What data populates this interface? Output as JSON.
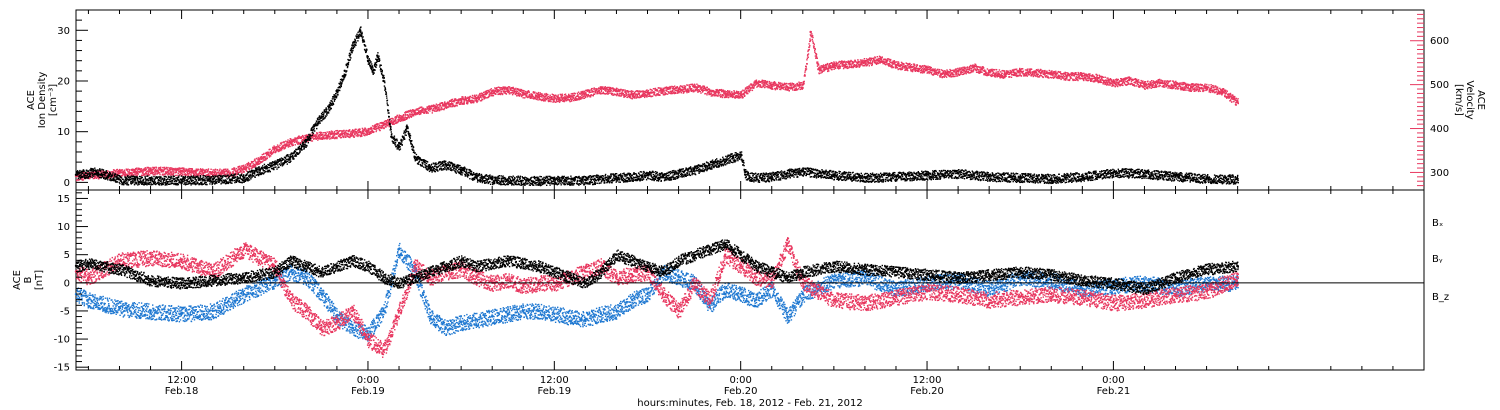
{
  "colors": {
    "black": "#000000",
    "pink": "#e8375f",
    "blue": "#1f78d1",
    "background": "#ffffff"
  },
  "chart_data": [
    {
      "type": "scatter",
      "panel": "top",
      "title": "",
      "x_unit": "hours since 2012-02-18 00:00",
      "xlim": [
        5.2,
        92.0
      ],
      "x_ticks": [
        {
          "hour": 12,
          "time": "12:00",
          "date": "Feb.18"
        },
        {
          "hour": 24,
          "time": "0:00",
          "date": "Feb.19"
        },
        {
          "hour": 36,
          "time": "12:00",
          "date": "Feb.19"
        },
        {
          "hour": 48,
          "time": "0:00",
          "date": "Feb.20"
        },
        {
          "hour": 60,
          "time": "12:00",
          "date": "Feb.20"
        },
        {
          "hour": 72,
          "time": "0:00",
          "date": "Feb.21"
        }
      ],
      "left_axis": {
        "label_lines": [
          "ACE",
          "Ion Density",
          "[cm⁻³]"
        ],
        "ylim": [
          -1.5,
          34
        ],
        "ticks": [
          0,
          10,
          20,
          30
        ]
      },
      "right_axis": {
        "label_lines": [
          "ACE",
          "Velocity",
          "[km/s]"
        ],
        "ylim": [
          260,
          670
        ],
        "ticks": [
          300,
          400,
          500,
          600
        ],
        "color": "#e8375f"
      },
      "series": [
        {
          "axis": "left",
          "color": "#000000",
          "x": [
            5.2,
            6.5,
            8,
            9,
            10,
            12,
            14,
            16,
            17,
            18,
            19,
            20,
            20.5,
            21,
            21.5,
            22,
            22.5,
            23,
            23.5,
            24,
            24.3,
            24.6,
            25,
            25.5,
            26,
            26.5,
            27,
            28,
            29,
            30,
            31,
            32,
            33,
            35,
            38,
            40,
            42,
            43,
            44,
            45,
            46,
            47,
            47.5,
            48,
            48.3,
            49,
            50,
            51,
            52,
            54,
            56,
            58,
            60,
            62,
            64,
            66,
            68,
            70,
            72,
            74,
            76,
            78,
            80
          ],
          "y": [
            1.5,
            2.2,
            0.6,
            0.5,
            0.5,
            0.5,
            0.6,
            1.0,
            2.5,
            3.5,
            5.0,
            8.0,
            11.0,
            13.0,
            15.0,
            18.0,
            22.0,
            27.0,
            30.0,
            24.0,
            22.0,
            25.0,
            20.0,
            9.0,
            7.0,
            11.0,
            5.0,
            3.0,
            3.5,
            2.5,
            1.0,
            0.6,
            0.5,
            0.4,
            0.5,
            1.0,
            1.5,
            1.2,
            1.8,
            2.5,
            3.5,
            4.5,
            5.0,
            5.5,
            1.5,
            1.0,
            1.2,
            1.8,
            2.2,
            1.5,
            1.0,
            1.2,
            1.5,
            1.8,
            1.2,
            1.0,
            0.8,
            1.2,
            2.0,
            1.8,
            1.2,
            0.8,
            0.7
          ]
        },
        {
          "axis": "right",
          "color": "#e8375f",
          "x": [
            5.2,
            8,
            10,
            12,
            14,
            15,
            16,
            17,
            18,
            19,
            20,
            21,
            22,
            23,
            24,
            25,
            26,
            27,
            28,
            29,
            30,
            31,
            32,
            33,
            34,
            35,
            36,
            37,
            38,
            39,
            40,
            41,
            42,
            43,
            44,
            45,
            46,
            47,
            48,
            49,
            50,
            51,
            52,
            52.5,
            53,
            54,
            55,
            56,
            57,
            58,
            59,
            60,
            61,
            62,
            63,
            64,
            65,
            66,
            67,
            68,
            69,
            70,
            71,
            72,
            73,
            74,
            75,
            76,
            77,
            78,
            79,
            80
          ],
          "y": [
            292,
            300,
            305,
            303,
            300,
            300,
            310,
            330,
            355,
            370,
            380,
            385,
            388,
            390,
            395,
            410,
            425,
            440,
            445,
            455,
            465,
            470,
            485,
            490,
            480,
            475,
            470,
            472,
            480,
            490,
            485,
            478,
            482,
            487,
            490,
            495,
            485,
            480,
            478,
            505,
            500,
            495,
            500,
            620,
            535,
            545,
            548,
            552,
            558,
            545,
            540,
            535,
            525,
            530,
            540,
            528,
            525,
            530,
            528,
            525,
            520,
            520,
            515,
            505,
            510,
            500,
            505,
            500,
            495,
            495,
            485,
            460
          ]
        }
      ]
    },
    {
      "type": "scatter",
      "panel": "bottom",
      "title": "",
      "x_unit": "hours since 2012-02-18 00:00",
      "xlim": [
        5.2,
        92.0
      ],
      "xlabel": "hours:minutes, Feb. 18, 2012 - Feb. 21, 2012",
      "left_axis": {
        "label_lines": [
          "ACE",
          "B",
          "[nT]"
        ],
        "ylim": [
          -15.5,
          16.5
        ],
        "ticks": [
          -15,
          -10,
          -5,
          0,
          5,
          10,
          15
        ]
      },
      "zero_line": true,
      "legend": [
        "Bₓ",
        "Bᵧ",
        "B_z"
      ],
      "series": [
        {
          "name": "Bₓ",
          "color": "#000000",
          "x": [
            5.2,
            6,
            8,
            10,
            12,
            14,
            16,
            18,
            19,
            20,
            21,
            22,
            23,
            24,
            25,
            26,
            27,
            28,
            29,
            30,
            31,
            32,
            33,
            34,
            35,
            36,
            37,
            38,
            39,
            40,
            41,
            42,
            43,
            44,
            45,
            46,
            47,
            48,
            49,
            50,
            51,
            52,
            54,
            56,
            58,
            60,
            62,
            64,
            66,
            68,
            70,
            72,
            74,
            76,
            78,
            80
          ],
          "y": [
            3.0,
            3.5,
            2.5,
            0.5,
            0.0,
            0.5,
            1.0,
            2.0,
            4.0,
            3.0,
            2.0,
            3.0,
            4.0,
            3.0,
            1.0,
            0.0,
            1.0,
            2.0,
            3.0,
            4.0,
            3.0,
            3.5,
            4.0,
            3.5,
            3.0,
            2.0,
            1.0,
            0.0,
            2.0,
            5.0,
            4.0,
            3.0,
            2.0,
            4.0,
            5.0,
            6.0,
            7.0,
            5.0,
            3.0,
            2.0,
            1.0,
            2.0,
            3.0,
            2.5,
            2.0,
            1.5,
            1.0,
            1.5,
            2.0,
            1.5,
            0.5,
            0.0,
            -1.0,
            1.0,
            2.5,
            3.0
          ]
        },
        {
          "name": "Bᵧ",
          "color": "#1f78d1",
          "x": [
            5.2,
            6,
            8,
            10,
            12,
            14,
            16,
            18,
            19,
            20,
            21,
            22,
            23,
            24,
            25,
            26,
            27,
            28,
            29,
            30,
            31,
            32,
            33,
            34,
            35,
            36,
            37,
            38,
            39,
            40,
            41,
            42,
            43,
            44,
            45,
            46,
            47,
            48,
            49,
            50,
            51,
            52,
            54,
            56,
            58,
            60,
            62,
            64,
            66,
            68,
            70,
            72,
            74,
            76,
            78,
            80
          ],
          "y": [
            -2.0,
            -3.0,
            -4.5,
            -5.0,
            -5.5,
            -5.0,
            -2.0,
            0.5,
            2.0,
            1.0,
            -2.0,
            -6.0,
            -8.0,
            -9.0,
            -5.0,
            6.0,
            2.0,
            -6.0,
            -8.0,
            -7.0,
            -6.5,
            -6.0,
            -5.5,
            -5.0,
            -5.0,
            -5.5,
            -6.0,
            -6.5,
            -5.5,
            -5.0,
            -3.0,
            -2.0,
            2.0,
            1.0,
            0.0,
            -4.0,
            -1.0,
            -2.0,
            -3.0,
            -1.0,
            -6.0,
            -2.0,
            0.5,
            1.0,
            -1.0,
            0.0,
            0.5,
            -1.0,
            1.0,
            0.5,
            -1.0,
            -0.5,
            0.0,
            -1.0,
            0.0,
            0.0
          ]
        },
        {
          "name": "B_z",
          "color": "#e8375f",
          "x": [
            5.2,
            6,
            8,
            10,
            12,
            14,
            16,
            18,
            19,
            20,
            21,
            22,
            23,
            24,
            25,
            26,
            27,
            28,
            29,
            30,
            31,
            32,
            33,
            34,
            35,
            36,
            37,
            38,
            39,
            40,
            41,
            42,
            43,
            44,
            45,
            46,
            47,
            48,
            49,
            50,
            51,
            52,
            54,
            56,
            58,
            60,
            62,
            64,
            66,
            68,
            70,
            72,
            74,
            76,
            78,
            80
          ],
          "y": [
            2.0,
            1.0,
            4.0,
            4.5,
            4.0,
            2.0,
            6.0,
            3.0,
            -3.0,
            -5.0,
            -8.0,
            -7.0,
            -5.0,
            -10.0,
            -12.0,
            -5.0,
            3.0,
            1.0,
            2.0,
            2.5,
            1.0,
            0.0,
            0.5,
            -0.5,
            0.0,
            0.0,
            1.0,
            2.0,
            3.0,
            1.0,
            1.5,
            2.0,
            -2.0,
            -5.0,
            0.0,
            -3.0,
            5.0,
            3.0,
            1.0,
            0.5,
            7.0,
            0.0,
            -3.0,
            -3.5,
            -2.5,
            -1.5,
            -2.0,
            -3.0,
            -2.5,
            -2.0,
            -2.5,
            -3.5,
            -3.0,
            -2.0,
            -1.5,
            1.0
          ]
        }
      ]
    }
  ]
}
